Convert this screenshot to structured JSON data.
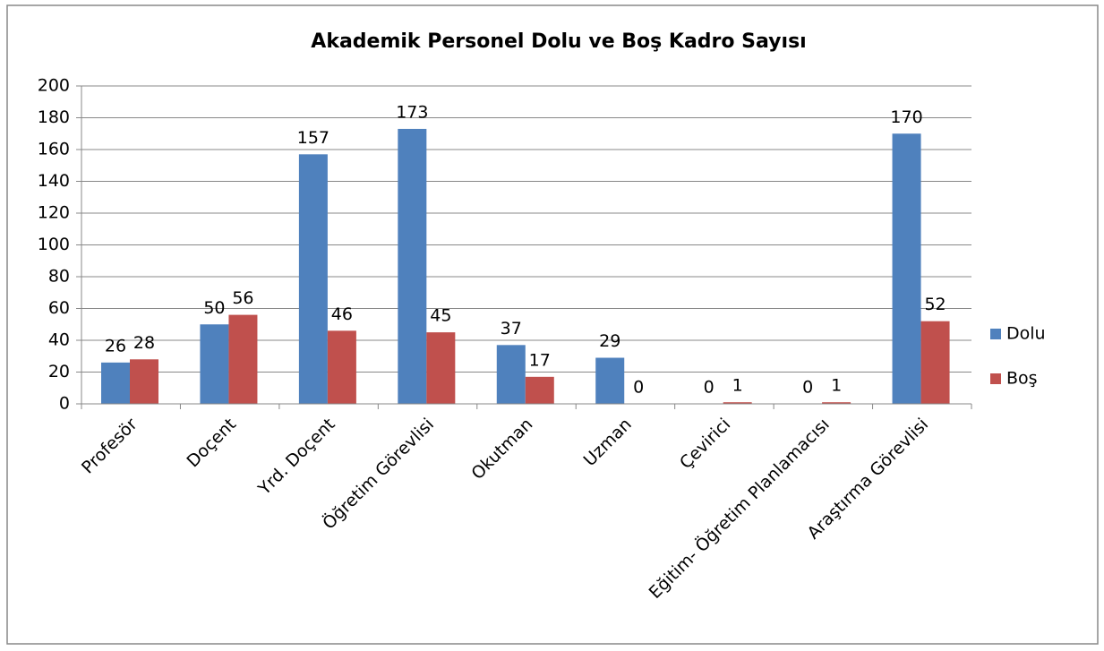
{
  "chart_data": {
    "type": "bar",
    "title": "Akademik Personel Dolu ve Boş Kadro Sayısı",
    "categories": [
      "Profesör",
      "Doçent",
      "Yrd. Doçent",
      "Öğretim Görevlisi",
      "Okutman",
      "Uzman",
      "Çevirici",
      "Eğitim- Öğretim Planlamacısı",
      "Araştırma Görevlisi"
    ],
    "series": [
      {
        "name": "Dolu",
        "color": "#4f81bd",
        "values": [
          26,
          50,
          157,
          173,
          37,
          29,
          0,
          0,
          170
        ]
      },
      {
        "name": "Boş",
        "color": "#c0504d",
        "values": [
          28,
          56,
          46,
          45,
          17,
          0,
          1,
          1,
          52
        ]
      }
    ],
    "ylim": [
      0,
      200
    ],
    "yticks": [
      0,
      20,
      40,
      60,
      80,
      100,
      120,
      140,
      160,
      180,
      200
    ],
    "grid": true,
    "legend": "right"
  }
}
